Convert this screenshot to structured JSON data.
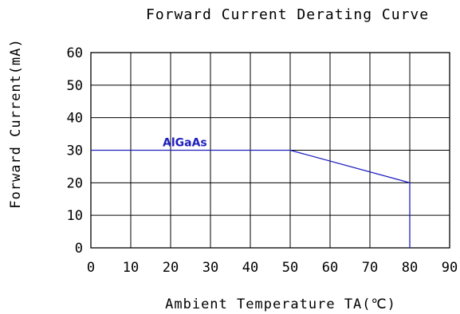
{
  "chart_data": {
    "type": "line",
    "title": "Forward Current Derating Curve",
    "xlabel": "Ambient Temperature TA(℃)",
    "ylabel": "Forward Current(mA)",
    "xlim": [
      0,
      90
    ],
    "ylim": [
      0,
      60
    ],
    "x_ticks": [
      "0",
      "10",
      "20",
      "30",
      "40",
      "50",
      "60",
      "70",
      "80",
      "90"
    ],
    "y_ticks": [
      "0",
      "10",
      "20",
      "30",
      "40",
      "50",
      "60"
    ],
    "grid": true,
    "series": [
      {
        "name": "AlGaAs",
        "color": "#1f1fbf",
        "x": [
          0,
          50,
          80,
          80
        ],
        "y": [
          30,
          30,
          20,
          0
        ]
      }
    ]
  }
}
